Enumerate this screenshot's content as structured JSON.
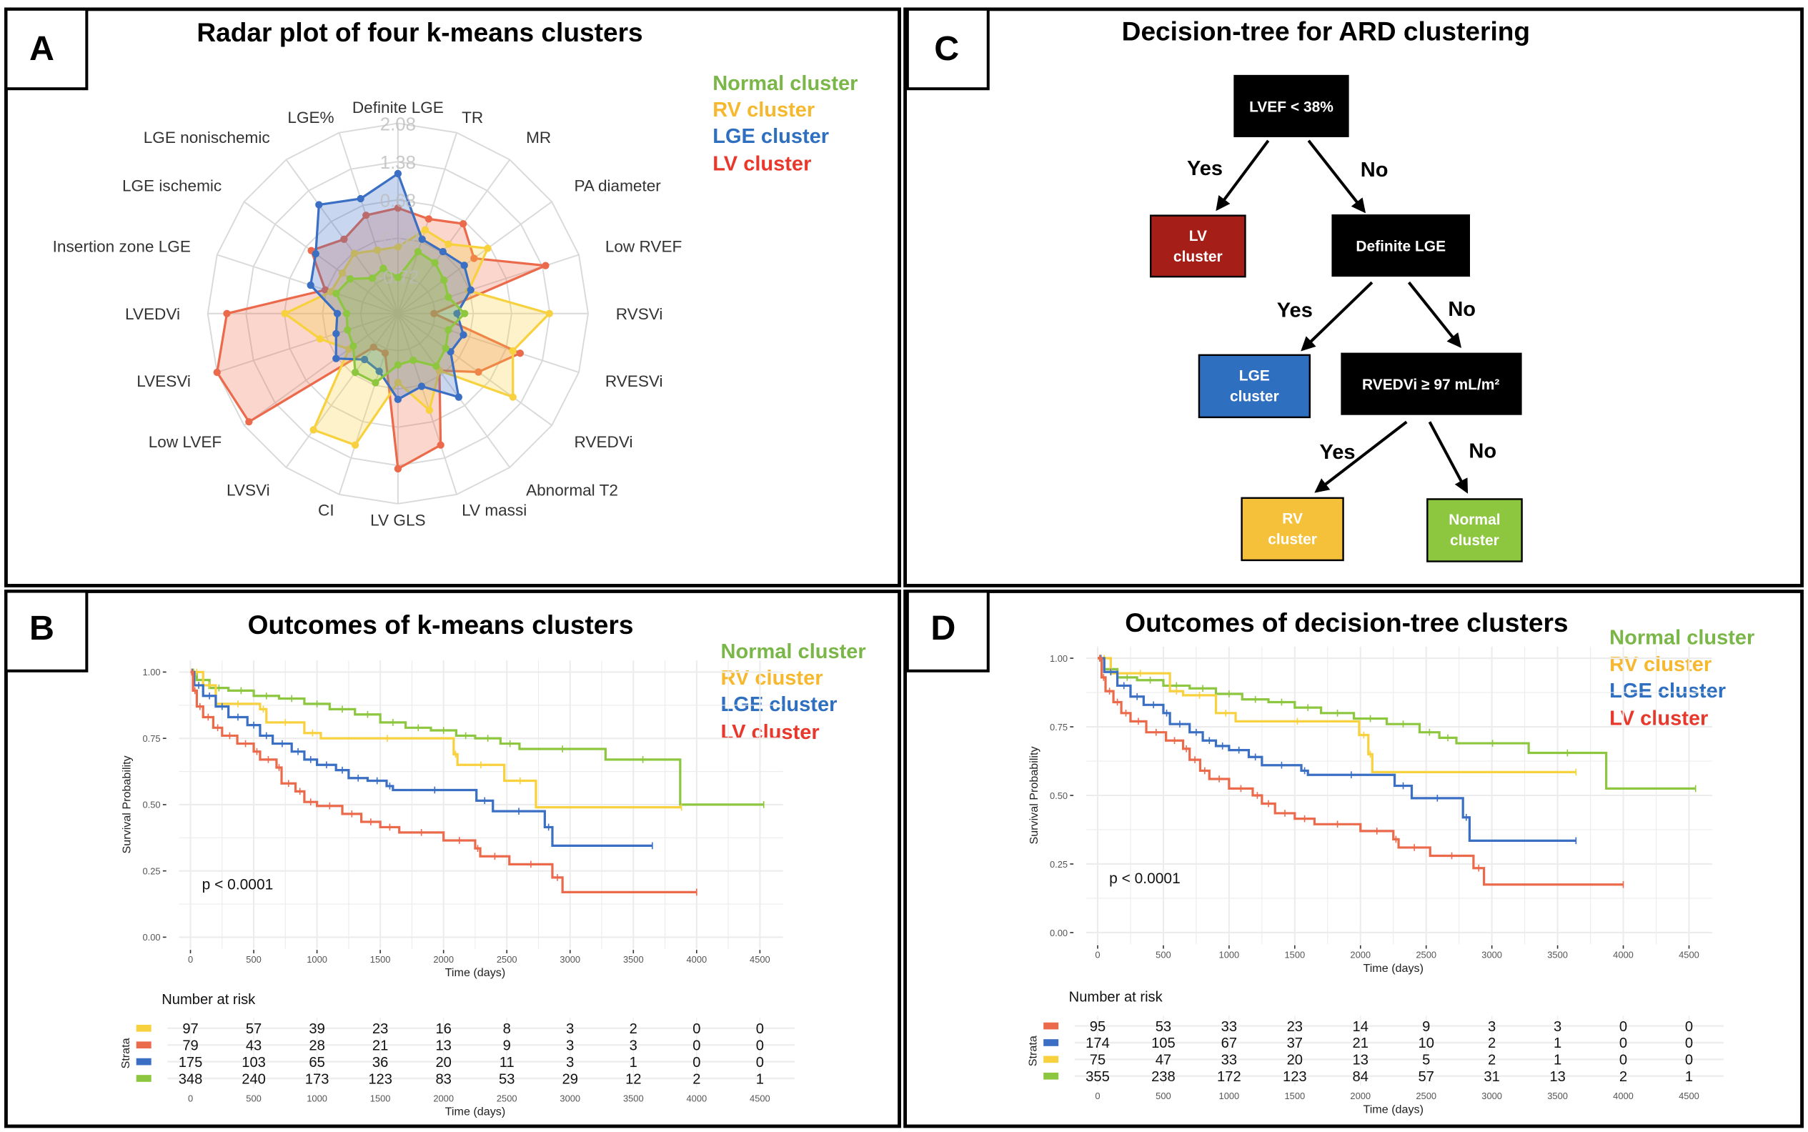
{
  "panels": {
    "A": {
      "label": "A",
      "title": "Radar plot of four k-means clusters"
    },
    "B": {
      "label": "B",
      "title": "Outcomes of k-means clusters"
    },
    "C": {
      "label": "C",
      "title": "Decision-tree for ARD clustering"
    },
    "D": {
      "label": "D",
      "title": "Outcomes of decision-tree clusters"
    }
  },
  "legend": [
    {
      "label": "Normal cluster",
      "color": "#7ab648"
    },
    {
      "label": "RV cluster",
      "color": "#f5b82e"
    },
    {
      "label": "LGE cluster",
      "color": "#2f6fc0"
    },
    {
      "label": "LV cluster",
      "color": "#e8382c"
    }
  ],
  "colors": {
    "normal": "#8dc63f",
    "rv": "#f7d13e",
    "lge": "#3a6fc4",
    "lv": "#ec6a4c"
  },
  "decision_tree": {
    "root": "LVEF < 38%",
    "lv": "LV cluster",
    "definite_lge": "Definite LGE",
    "lge": "LGE cluster",
    "rvedvi": "RVEDVi ≥ 97 mL/m²",
    "rv": "RV cluster",
    "normal": "Normal cluster",
    "yes": "Yes",
    "no": "No",
    "node_colors": {
      "lv": "#a51e18",
      "lge": "#2f6fc0",
      "rv": "#f5c13a",
      "normal": "#8dc63f",
      "decision": "#000000"
    }
  },
  "chart_data": [
    {
      "type": "radar",
      "title": "Radar plot of four k-means clusters",
      "axes": [
        "Definite LGE",
        "TR",
        "MR",
        "PA diameter",
        "Low RVEF",
        "RVSVi",
        "RVESVi",
        "RVEDVi",
        "Abnormal T2",
        "LV massi",
        "LV GLS",
        "CI",
        "LVSVi",
        "Low LVEF",
        "LVESVi",
        "LVEDVi",
        "Insertion zone LGE",
        "LGE ischemic",
        "LGE nonischemic",
        "LGE%"
      ],
      "ring_ticks": [
        2.08,
        1.38,
        0.68,
        -0.02,
        -0.72
      ],
      "range": [
        -1.4,
        2.08
      ],
      "series": [
        {
          "name": "LV cluster",
          "color": "#ec6a4c",
          "values": [
            0.53,
            0.42,
            0.63,
            0.32,
            1.44,
            -0.74,
            0.95,
            0.42,
            -0.11,
            1.13,
            1.44,
            -0.64,
            -0.64,
            1.97,
            2.08,
            1.73,
            0.0,
            0.56,
            0.28,
            0.49
          ]
        },
        {
          "name": "RV cluster",
          "color": "#f7d13e",
          "values": [
            -0.18,
            0.21,
            0.17,
            0.63,
            -0.04,
            1.37,
            0.81,
            1.2,
            -0.11,
            0.46,
            -0.14,
            1.13,
            1.23,
            -0.29,
            0.1,
            0.67,
            -0.11,
            -0.14,
            -0.04,
            -0.18
          ]
        },
        {
          "name": "LGE cluster",
          "color": "#3a6fc4",
          "values": [
            1.16,
            0.03,
            0.0,
            0.1,
            0.0,
            -0.32,
            -0.14,
            -0.21,
            0.49,
            0.0,
            0.17,
            -0.29,
            -0.36,
            0.0,
            -0.21,
            -0.29,
            0.28,
            0.46,
            1.06,
            0.81
          ]
        },
        {
          "name": "Normal cluster",
          "color": "#8dc63f",
          "values": [
            -0.74,
            -0.21,
            -0.25,
            -0.36,
            -0.43,
            -0.18,
            -0.43,
            -0.32,
            -0.21,
            -0.5,
            -0.46,
            -0.07,
            -0.07,
            -0.39,
            -0.43,
            -0.46,
            -0.21,
            -0.32,
            -0.6,
            -0.53
          ]
        }
      ]
    },
    {
      "type": "line",
      "title": "Outcomes of k-means clusters",
      "xlabel": "Time (days)",
      "ylabel": "Survival Probability",
      "xlim": [
        0,
        4500
      ],
      "ylim": [
        0,
        1
      ],
      "xticks": [
        0,
        500,
        1000,
        1500,
        2000,
        2500,
        3000,
        3500,
        4000,
        4500
      ],
      "yticks": [
        "0.00",
        "0.25",
        "0.50",
        "0.75",
        "1.00"
      ],
      "annotation": "p < 0.0001",
      "series": [
        {
          "name": "Normal cluster",
          "color": "#8dc63f",
          "end": 4530,
          "steps": [
            [
              0,
              1
            ],
            [
              50,
              0.97
            ],
            [
              150,
              0.94
            ],
            [
              300,
              0.93
            ],
            [
              500,
              0.91
            ],
            [
              700,
              0.9
            ],
            [
              900,
              0.88
            ],
            [
              1100,
              0.86
            ],
            [
              1300,
              0.84
            ],
            [
              1500,
              0.81
            ],
            [
              1700,
              0.79
            ],
            [
              1900,
              0.78
            ],
            [
              2100,
              0.76
            ],
            [
              2250,
              0.75
            ],
            [
              2450,
              0.73
            ],
            [
              2600,
              0.71
            ],
            [
              3280,
              0.67
            ],
            [
              3870,
              0.5
            ]
          ]
        },
        {
          "name": "RV cluster",
          "color": "#f7d13e",
          "end": 3880,
          "steps": [
            [
              0,
              1
            ],
            [
              100,
              0.95
            ],
            [
              200,
              0.88
            ],
            [
              550,
              0.86
            ],
            [
              600,
              0.81
            ],
            [
              900,
              0.77
            ],
            [
              1030,
              0.75
            ],
            [
              2080,
              0.69
            ],
            [
              2110,
              0.65
            ],
            [
              2480,
              0.59
            ],
            [
              2730,
              0.49
            ]
          ]
        },
        {
          "name": "LGE cluster",
          "color": "#3a6fc4",
          "end": 3650,
          "steps": [
            [
              0,
              1
            ],
            [
              30,
              0.95
            ],
            [
              100,
              0.91
            ],
            [
              200,
              0.87
            ],
            [
              300,
              0.83
            ],
            [
              450,
              0.8
            ],
            [
              550,
              0.76
            ],
            [
              650,
              0.73
            ],
            [
              800,
              0.7
            ],
            [
              900,
              0.67
            ],
            [
              1000,
              0.65
            ],
            [
              1150,
              0.63
            ],
            [
              1250,
              0.6
            ],
            [
              1400,
              0.59
            ],
            [
              1550,
              0.57
            ],
            [
              1600,
              0.555
            ],
            [
              2260,
              0.515
            ],
            [
              2390,
              0.475
            ],
            [
              2800,
              0.415
            ],
            [
              2860,
              0.345
            ]
          ]
        },
        {
          "name": "LV cluster",
          "color": "#ec6a4c",
          "end": 4000,
          "steps": [
            [
              0,
              1
            ],
            [
              20,
              0.93
            ],
            [
              50,
              0.87
            ],
            [
              100,
              0.83
            ],
            [
              180,
              0.79
            ],
            [
              250,
              0.76
            ],
            [
              370,
              0.73
            ],
            [
              500,
              0.7
            ],
            [
              550,
              0.67
            ],
            [
              680,
              0.64
            ],
            [
              720,
              0.58
            ],
            [
              830,
              0.55
            ],
            [
              900,
              0.51
            ],
            [
              1000,
              0.495
            ],
            [
              1200,
              0.465
            ],
            [
              1350,
              0.435
            ],
            [
              1500,
              0.415
            ],
            [
              1650,
              0.395
            ],
            [
              2000,
              0.365
            ],
            [
              2250,
              0.335
            ],
            [
              2290,
              0.305
            ],
            [
              2520,
              0.275
            ],
            [
              2860,
              0.225
            ],
            [
              2940,
              0.17
            ]
          ]
        }
      ],
      "risk_table": {
        "title": "Number at risk",
        "strata_label": "Strata",
        "xlabel": "Time (days)",
        "rows": [
          {
            "color": "#f7d13e",
            "values": [
              97,
              57,
              39,
              23,
              16,
              8,
              3,
              2,
              0,
              0
            ]
          },
          {
            "color": "#ec6a4c",
            "values": [
              79,
              43,
              28,
              21,
              13,
              9,
              3,
              3,
              0,
              0
            ]
          },
          {
            "color": "#3a6fc4",
            "values": [
              175,
              103,
              65,
              36,
              20,
              11,
              3,
              1,
              0,
              0
            ]
          },
          {
            "color": "#8dc63f",
            "values": [
              348,
              240,
              173,
              123,
              83,
              53,
              29,
              12,
              2,
              1
            ]
          }
        ]
      }
    },
    {
      "type": "line",
      "title": "Outcomes of decision-tree clusters",
      "xlabel": "Time (days)",
      "ylabel": "Survival Probability",
      "xlim": [
        0,
        4500
      ],
      "ylim": [
        0,
        1
      ],
      "xticks": [
        0,
        500,
        1000,
        1500,
        2000,
        2500,
        3000,
        3500,
        4000,
        4500
      ],
      "yticks": [
        "0.00",
        "0.25",
        "0.50",
        "0.75",
        "1.00"
      ],
      "annotation": "p < 0.0001",
      "series": [
        {
          "name": "Normal cluster",
          "color": "#8dc63f",
          "end": 4550,
          "steps": [
            [
              0,
              1
            ],
            [
              50,
              0.96
            ],
            [
              150,
              0.93
            ],
            [
              300,
              0.92
            ],
            [
              500,
              0.9
            ],
            [
              700,
              0.89
            ],
            [
              900,
              0.87
            ],
            [
              1100,
              0.85
            ],
            [
              1300,
              0.84
            ],
            [
              1500,
              0.82
            ],
            [
              1700,
              0.8
            ],
            [
              1950,
              0.78
            ],
            [
              2200,
              0.76
            ],
            [
              2450,
              0.73
            ],
            [
              2600,
              0.71
            ],
            [
              2730,
              0.69
            ],
            [
              3280,
              0.655
            ],
            [
              3870,
              0.525
            ]
          ]
        },
        {
          "name": "RV cluster",
          "color": "#f7d13e",
          "end": 3640,
          "steps": [
            [
              0,
              1
            ],
            [
              100,
              0.945
            ],
            [
              550,
              0.88
            ],
            [
              650,
              0.865
            ],
            [
              900,
              0.8
            ],
            [
              1050,
              0.77
            ],
            [
              1990,
              0.72
            ],
            [
              2060,
              0.65
            ],
            [
              2090,
              0.585
            ]
          ]
        },
        {
          "name": "LGE cluster",
          "color": "#3a6fc4",
          "end": 3640,
          "steps": [
            [
              0,
              1
            ],
            [
              50,
              0.95
            ],
            [
              150,
              0.9
            ],
            [
              250,
              0.86
            ],
            [
              350,
              0.83
            ],
            [
              500,
              0.8
            ],
            [
              550,
              0.76
            ],
            [
              700,
              0.73
            ],
            [
              800,
              0.7
            ],
            [
              900,
              0.68
            ],
            [
              1000,
              0.665
            ],
            [
              1150,
              0.64
            ],
            [
              1250,
              0.61
            ],
            [
              1550,
              0.59
            ],
            [
              1600,
              0.575
            ],
            [
              2260,
              0.535
            ],
            [
              2390,
              0.49
            ],
            [
              2780,
              0.42
            ],
            [
              2830,
              0.335
            ]
          ]
        },
        {
          "name": "LV cluster",
          "color": "#ec6a4c",
          "end": 4000,
          "steps": [
            [
              0,
              1
            ],
            [
              30,
              0.93
            ],
            [
              60,
              0.88
            ],
            [
              120,
              0.84
            ],
            [
              180,
              0.8
            ],
            [
              250,
              0.77
            ],
            [
              370,
              0.73
            ],
            [
              520,
              0.7
            ],
            [
              650,
              0.67
            ],
            [
              700,
              0.63
            ],
            [
              780,
              0.59
            ],
            [
              850,
              0.56
            ],
            [
              1000,
              0.525
            ],
            [
              1180,
              0.5
            ],
            [
              1250,
              0.47
            ],
            [
              1350,
              0.435
            ],
            [
              1500,
              0.415
            ],
            [
              1650,
              0.395
            ],
            [
              2000,
              0.37
            ],
            [
              2250,
              0.34
            ],
            [
              2290,
              0.31
            ],
            [
              2530,
              0.28
            ],
            [
              2860,
              0.235
            ],
            [
              2940,
              0.175
            ]
          ]
        }
      ],
      "risk_table": {
        "title": "Number at risk",
        "strata_label": "Strata",
        "xlabel": "Time (days)",
        "rows": [
          {
            "color": "#ec6a4c",
            "values": [
              95,
              53,
              33,
              23,
              14,
              9,
              3,
              3,
              0,
              0
            ]
          },
          {
            "color": "#3a6fc4",
            "values": [
              174,
              105,
              67,
              37,
              21,
              10,
              2,
              1,
              0,
              0
            ]
          },
          {
            "color": "#f7d13e",
            "values": [
              75,
              47,
              33,
              20,
              13,
              5,
              2,
              1,
              0,
              0
            ]
          },
          {
            "color": "#8dc63f",
            "values": [
              355,
              238,
              172,
              123,
              84,
              57,
              31,
              13,
              2,
              1
            ]
          }
        ]
      }
    }
  ]
}
